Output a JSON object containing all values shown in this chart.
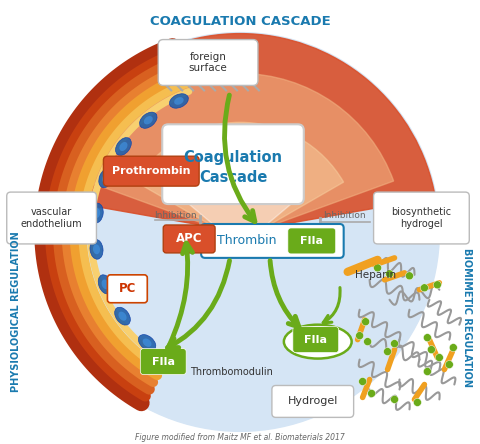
{
  "title": "Figure modified from Maitz MF et al. Biomaterials 2017",
  "coagulation_cascade_label": "COAGULATION CASCADE",
  "physiological_regulation_label": "PHYSIOLOGICAL REGULATION",
  "biomimetic_regulation_label": "BIOMIMETIC REGULATION",
  "colors": {
    "orange_red": "#D94F2A",
    "orange": "#E87A30",
    "light_orange": "#F0A060",
    "pale_orange": "#F2B080",
    "lightest_orange": "#F8D0A0",
    "light_blue_bg": "#C5D8EE",
    "lighter_blue": "#D5E5F5",
    "white": "#FFFFFF",
    "green_arrow": "#6AAB1A",
    "dark_green": "#4A8010",
    "blue_label": "#1A7AAF",
    "gray_text": "#555555",
    "red_label": "#CC3300",
    "box_border": "#AAAAAA",
    "cell_blue": "#2060AA",
    "yellow_orange": "#F0A020",
    "dark_orange": "#B04010",
    "mid_orange": "#D06020",
    "gold": "#E8A020",
    "light_gold": "#F5C050"
  }
}
